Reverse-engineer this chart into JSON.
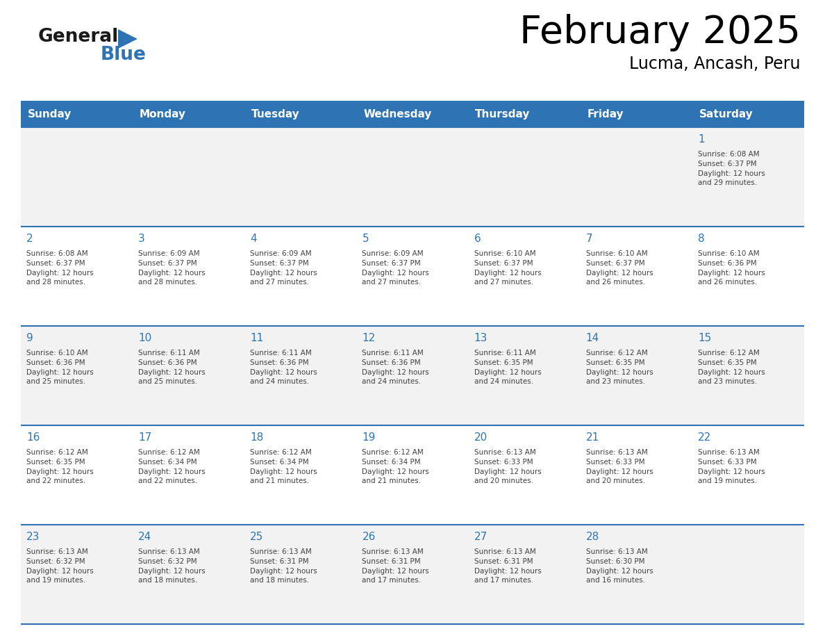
{
  "title": "February 2025",
  "subtitle": "Lucma, Ancash, Peru",
  "days_of_week": [
    "Sunday",
    "Monday",
    "Tuesday",
    "Wednesday",
    "Thursday",
    "Friday",
    "Saturday"
  ],
  "header_bg": "#2E74B5",
  "header_text_color": "#FFFFFF",
  "cell_bg_odd": "#F2F2F2",
  "cell_bg_even": "#FFFFFF",
  "day_num_color": "#2E74B5",
  "text_color": "#404040",
  "line_color": "#2E74B5",
  "calendar_data": [
    [
      null,
      null,
      null,
      null,
      null,
      null,
      1
    ],
    [
      2,
      3,
      4,
      5,
      6,
      7,
      8
    ],
    [
      9,
      10,
      11,
      12,
      13,
      14,
      15
    ],
    [
      16,
      17,
      18,
      19,
      20,
      21,
      22
    ],
    [
      23,
      24,
      25,
      26,
      27,
      28,
      null
    ]
  ],
  "sunrise_data": {
    "1": "Sunrise: 6:08 AM\nSunset: 6:37 PM\nDaylight: 12 hours\nand 29 minutes.",
    "2": "Sunrise: 6:08 AM\nSunset: 6:37 PM\nDaylight: 12 hours\nand 28 minutes.",
    "3": "Sunrise: 6:09 AM\nSunset: 6:37 PM\nDaylight: 12 hours\nand 28 minutes.",
    "4": "Sunrise: 6:09 AM\nSunset: 6:37 PM\nDaylight: 12 hours\nand 27 minutes.",
    "5": "Sunrise: 6:09 AM\nSunset: 6:37 PM\nDaylight: 12 hours\nand 27 minutes.",
    "6": "Sunrise: 6:10 AM\nSunset: 6:37 PM\nDaylight: 12 hours\nand 27 minutes.",
    "7": "Sunrise: 6:10 AM\nSunset: 6:37 PM\nDaylight: 12 hours\nand 26 minutes.",
    "8": "Sunrise: 6:10 AM\nSunset: 6:36 PM\nDaylight: 12 hours\nand 26 minutes.",
    "9": "Sunrise: 6:10 AM\nSunset: 6:36 PM\nDaylight: 12 hours\nand 25 minutes.",
    "10": "Sunrise: 6:11 AM\nSunset: 6:36 PM\nDaylight: 12 hours\nand 25 minutes.",
    "11": "Sunrise: 6:11 AM\nSunset: 6:36 PM\nDaylight: 12 hours\nand 24 minutes.",
    "12": "Sunrise: 6:11 AM\nSunset: 6:36 PM\nDaylight: 12 hours\nand 24 minutes.",
    "13": "Sunrise: 6:11 AM\nSunset: 6:35 PM\nDaylight: 12 hours\nand 24 minutes.",
    "14": "Sunrise: 6:12 AM\nSunset: 6:35 PM\nDaylight: 12 hours\nand 23 minutes.",
    "15": "Sunrise: 6:12 AM\nSunset: 6:35 PM\nDaylight: 12 hours\nand 23 minutes.",
    "16": "Sunrise: 6:12 AM\nSunset: 6:35 PM\nDaylight: 12 hours\nand 22 minutes.",
    "17": "Sunrise: 6:12 AM\nSunset: 6:34 PM\nDaylight: 12 hours\nand 22 minutes.",
    "18": "Sunrise: 6:12 AM\nSunset: 6:34 PM\nDaylight: 12 hours\nand 21 minutes.",
    "19": "Sunrise: 6:12 AM\nSunset: 6:34 PM\nDaylight: 12 hours\nand 21 minutes.",
    "20": "Sunrise: 6:13 AM\nSunset: 6:33 PM\nDaylight: 12 hours\nand 20 minutes.",
    "21": "Sunrise: 6:13 AM\nSunset: 6:33 PM\nDaylight: 12 hours\nand 20 minutes.",
    "22": "Sunrise: 6:13 AM\nSunset: 6:33 PM\nDaylight: 12 hours\nand 19 minutes.",
    "23": "Sunrise: 6:13 AM\nSunset: 6:32 PM\nDaylight: 12 hours\nand 19 minutes.",
    "24": "Sunrise: 6:13 AM\nSunset: 6:32 PM\nDaylight: 12 hours\nand 18 minutes.",
    "25": "Sunrise: 6:13 AM\nSunset: 6:31 PM\nDaylight: 12 hours\nand 18 minutes.",
    "26": "Sunrise: 6:13 AM\nSunset: 6:31 PM\nDaylight: 12 hours\nand 17 minutes.",
    "27": "Sunrise: 6:13 AM\nSunset: 6:31 PM\nDaylight: 12 hours\nand 17 minutes.",
    "28": "Sunrise: 6:13 AM\nSunset: 6:30 PM\nDaylight: 12 hours\nand 16 minutes."
  }
}
